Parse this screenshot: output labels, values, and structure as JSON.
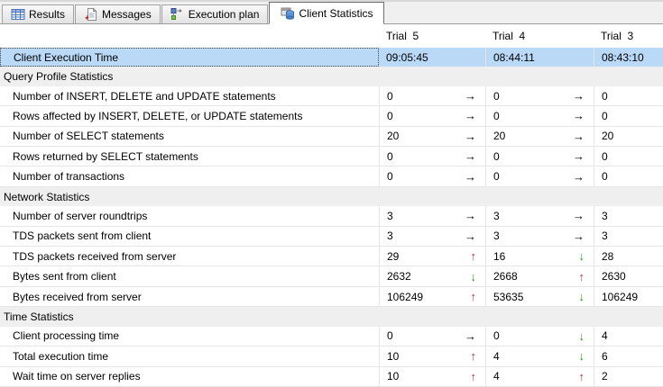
{
  "tabs": [
    {
      "label": "Results",
      "icon": "results-grid-icon",
      "active": false
    },
    {
      "label": "Messages",
      "icon": "messages-icon",
      "active": false
    },
    {
      "label": "Execution plan",
      "icon": "execution-plan-icon",
      "active": false
    },
    {
      "label": "Client Statistics",
      "icon": "client-statistics-icon",
      "active": true
    }
  ],
  "table": {
    "columns": [
      "Trial  5",
      "Trial  4",
      "Trial  3"
    ],
    "rows": [
      {
        "type": "selected",
        "label": "Client Execution Time",
        "values": [
          "09:05:45",
          "08:44:11",
          "08:43:10"
        ],
        "arrows": [
          "none",
          "none"
        ]
      },
      {
        "type": "section",
        "label": "Query Profile Statistics"
      },
      {
        "type": "item",
        "label": "Number of INSERT, DELETE and UPDATE statements",
        "values": [
          "0",
          "0",
          "0"
        ],
        "arrows": [
          "same",
          "same"
        ]
      },
      {
        "type": "item",
        "label": "Rows affected by INSERT, DELETE, or UPDATE statements",
        "values": [
          "0",
          "0",
          "0"
        ],
        "arrows": [
          "same",
          "same"
        ]
      },
      {
        "type": "item",
        "label": "Number of SELECT statements",
        "values": [
          "20",
          "20",
          "20"
        ],
        "arrows": [
          "same",
          "same"
        ]
      },
      {
        "type": "item",
        "label": "Rows returned by SELECT statements",
        "values": [
          "0",
          "0",
          "0"
        ],
        "arrows": [
          "same",
          "same"
        ]
      },
      {
        "type": "item",
        "label": "Number of transactions",
        "values": [
          "0",
          "0",
          "0"
        ],
        "arrows": [
          "same",
          "same"
        ]
      },
      {
        "type": "section",
        "label": "Network Statistics"
      },
      {
        "type": "item",
        "label": "Number of server roundtrips",
        "values": [
          "3",
          "3",
          "3"
        ],
        "arrows": [
          "same",
          "same"
        ]
      },
      {
        "type": "item",
        "label": "TDS packets sent from client",
        "values": [
          "3",
          "3",
          "3"
        ],
        "arrows": [
          "same",
          "same"
        ]
      },
      {
        "type": "item",
        "label": "TDS packets received from server",
        "values": [
          "29",
          "16",
          "28"
        ],
        "arrows": [
          "up",
          "down"
        ]
      },
      {
        "type": "item",
        "label": "Bytes sent from client",
        "values": [
          "2632",
          "2668",
          "2630"
        ],
        "arrows": [
          "down",
          "up"
        ]
      },
      {
        "type": "item",
        "label": "Bytes received from server",
        "values": [
          "106249",
          "53635",
          "106249"
        ],
        "arrows": [
          "up",
          "down"
        ]
      },
      {
        "type": "section",
        "label": "Time Statistics"
      },
      {
        "type": "item",
        "label": "Client processing time",
        "values": [
          "0",
          "0",
          "4"
        ],
        "arrows": [
          "same",
          "down"
        ]
      },
      {
        "type": "item",
        "label": "Total execution time",
        "values": [
          "10",
          "4",
          "6"
        ],
        "arrows": [
          "up",
          "down"
        ]
      },
      {
        "type": "item",
        "label": "Wait time on server replies",
        "values": [
          "10",
          "4",
          "2"
        ],
        "arrows": [
          "up",
          "up"
        ]
      }
    ]
  },
  "arrow_glyphs": {
    "same": "→",
    "up": "↑",
    "down": "↓"
  },
  "colors": {
    "selection_row": "#b9d9f7",
    "section_row": "#efefef",
    "trend_up": "#c42b2b",
    "trend_down": "#1f9c1f",
    "trend_same": "#000000"
  }
}
